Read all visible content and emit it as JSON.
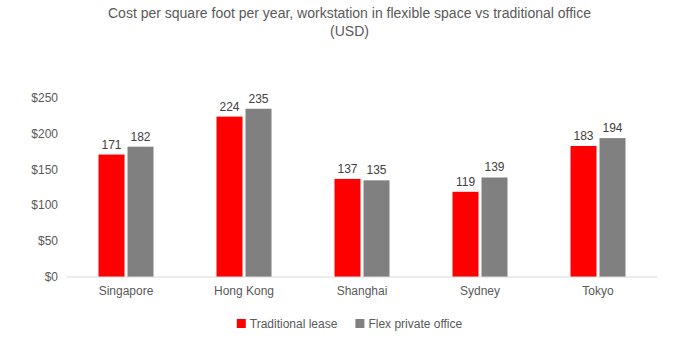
{
  "chart_data": {
    "type": "bar",
    "title": "Cost per square foot per year, workstation in flexible space vs traditional office (USD)",
    "categories": [
      "Singapore",
      "Hong Kong",
      "Shanghai",
      "Sydney",
      "Tokyo"
    ],
    "series": [
      {
        "name": "Traditional lease",
        "color": "#ff0000",
        "values": [
          171,
          224,
          137,
          119,
          183
        ]
      },
      {
        "name": "Flex private office",
        "color": "#808080",
        "values": [
          182,
          235,
          135,
          139,
          194
        ]
      }
    ],
    "ylim": [
      0,
      250
    ],
    "yticks": [
      {
        "value": 0,
        "label": "$0"
      },
      {
        "value": 50,
        "label": "$50"
      },
      {
        "value": 100,
        "label": "$100"
      },
      {
        "value": 150,
        "label": "$150"
      },
      {
        "value": 200,
        "label": "$200"
      },
      {
        "value": 250,
        "label": "$250"
      }
    ],
    "grid": false,
    "legend": "bottom",
    "data_labels": true
  }
}
